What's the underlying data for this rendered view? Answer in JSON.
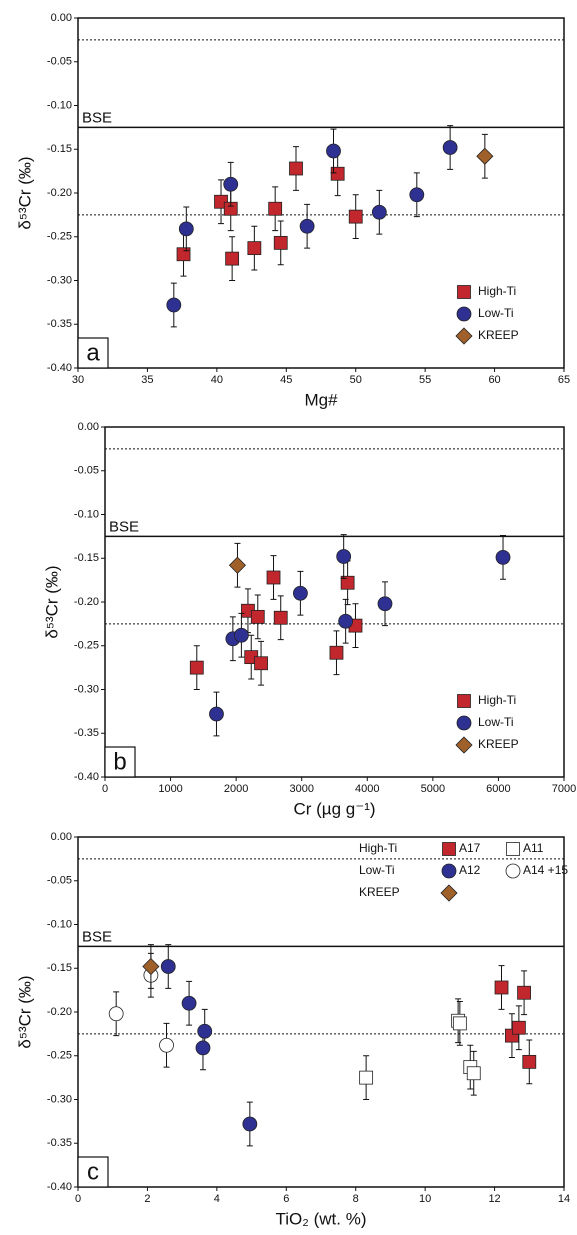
{
  "chart_data": [
    {
      "type": "scatter",
      "xlabel": "Mg#",
      "ylabel": "δ⁵³Cr (‰)",
      "panel_label": "a",
      "legend": "bottom-right",
      "xlim": [
        30,
        65
      ],
      "xticks": [
        30,
        35,
        40,
        45,
        50,
        55,
        60,
        65
      ],
      "ylim": [
        -0.4,
        0.0
      ],
      "yticks": [
        {
          "value": -0.4,
          "label": "-0.40"
        },
        {
          "value": -0.35,
          "label": "-0.35"
        },
        {
          "value": -0.3,
          "label": "-0.30"
        },
        {
          "value": -0.25,
          "label": "-0.25"
        },
        {
          "value": -0.2,
          "label": "-0.20"
        },
        {
          "value": -0.15,
          "label": "-0.15"
        },
        {
          "value": -0.1,
          "label": "-0.10"
        },
        {
          "value": -0.05,
          "label": "-0.05"
        },
        {
          "value": 0.0,
          "label": "0.00"
        }
      ],
      "hlines": [
        {
          "value": -0.025,
          "style": "dotted"
        },
        {
          "value": -0.125,
          "style": "solid",
          "label": "BSE"
        },
        {
          "value": -0.225,
          "style": "dotted"
        }
      ],
      "series": [
        {
          "name": "High-Ti",
          "marker": "square",
          "color": "#c1272d",
          "error": 0.025,
          "x": [
            37.6,
            40.3,
            41.0,
            41.1,
            42.7,
            44.2,
            44.6,
            45.7,
            48.7,
            50.0
          ],
          "values": [
            -0.27,
            -0.21,
            -0.218,
            -0.275,
            -0.263,
            -0.218,
            -0.257,
            -0.172,
            -0.178,
            -0.227
          ]
        },
        {
          "name": "Low-Ti",
          "marker": "circle",
          "color": "#2e3192",
          "error": 0.025,
          "x": [
            36.9,
            37.8,
            41.0,
            46.5,
            48.4,
            51.7,
            54.4,
            56.8
          ],
          "values": [
            -0.328,
            -0.241,
            -0.19,
            -0.238,
            -0.152,
            -0.222,
            -0.202,
            -0.148
          ]
        },
        {
          "name": "KREEP",
          "marker": "diamond",
          "color": "#a0602a",
          "error": 0.025,
          "x": [
            59.3
          ],
          "values": [
            -0.158
          ]
        }
      ]
    },
    {
      "type": "scatter",
      "xlabel": "Cr (µg g⁻¹)",
      "ylabel": "δ⁵³Cr (‰)",
      "panel_label": "b",
      "legend": "bottom-right",
      "xlim": [
        0,
        7000
      ],
      "xticks": [
        0,
        1000,
        2000,
        3000,
        4000,
        5000,
        6000,
        7000
      ],
      "ylim": [
        -0.4,
        0.0
      ],
      "yticks": [
        {
          "value": -0.4,
          "label": "-0.40"
        },
        {
          "value": -0.35,
          "label": "-0.35"
        },
        {
          "value": -0.3,
          "label": "-0.30"
        },
        {
          "value": -0.25,
          "label": "-0.25"
        },
        {
          "value": -0.2,
          "label": "-0.20"
        },
        {
          "value": -0.15,
          "label": "-0.15"
        },
        {
          "value": -0.1,
          "label": "-0.10"
        },
        {
          "value": -0.05,
          "label": "-0.05"
        },
        {
          "value": 0.0,
          "label": "0.00"
        }
      ],
      "hlines": [
        {
          "value": -0.025,
          "style": "dotted"
        },
        {
          "value": -0.125,
          "style": "solid",
          "label": "BSE"
        },
        {
          "value": -0.225,
          "style": "dotted"
        }
      ],
      "series": [
        {
          "name": "High-Ti",
          "marker": "square",
          "color": "#c1272d",
          "error": 0.025,
          "x": [
            1400,
            2180,
            2230,
            2330,
            2380,
            2570,
            2680,
            3530,
            3700,
            3820
          ],
          "values": [
            -0.275,
            -0.21,
            -0.263,
            -0.217,
            -0.27,
            -0.172,
            -0.218,
            -0.258,
            -0.178,
            -0.227
          ]
        },
        {
          "name": "Low-Ti",
          "marker": "circle",
          "color": "#2e3192",
          "error": 0.025,
          "x": [
            1700,
            1950,
            2080,
            2980,
            3640,
            3670,
            4270,
            6070
          ],
          "values": [
            -0.328,
            -0.242,
            -0.238,
            -0.19,
            -0.148,
            -0.222,
            -0.202,
            -0.149
          ]
        },
        {
          "name": "KREEP",
          "marker": "diamond",
          "color": "#a0602a",
          "error": 0.025,
          "x": [
            2020
          ],
          "values": [
            -0.158
          ]
        }
      ]
    },
    {
      "type": "scatter",
      "xlabel": "TiO₂ (wt. %)",
      "ylabel": "δ⁵³Cr (‰)",
      "panel_label": "c",
      "legend": "top-right",
      "xlim": [
        0,
        14
      ],
      "xticks": [
        0,
        2,
        4,
        6,
        8,
        10,
        12,
        14
      ],
      "ylim": [
        -0.4,
        0.0
      ],
      "yticks": [
        {
          "value": -0.4,
          "label": "-0.40"
        },
        {
          "value": -0.35,
          "label": "-0.35"
        },
        {
          "value": -0.3,
          "label": "-0.30"
        },
        {
          "value": -0.25,
          "label": "-0.25"
        },
        {
          "value": -0.2,
          "label": "-0.20"
        },
        {
          "value": -0.15,
          "label": "-0.15"
        },
        {
          "value": -0.1,
          "label": "-0.10"
        },
        {
          "value": -0.05,
          "label": "-0.05"
        },
        {
          "value": 0.0,
          "label": "0.00"
        }
      ],
      "hlines": [
        {
          "value": -0.025,
          "style": "dotted"
        },
        {
          "value": -0.125,
          "style": "solid",
          "label": "BSE"
        },
        {
          "value": -0.225,
          "style": "dotted"
        }
      ],
      "series": [
        {
          "name": "A17",
          "group": "High-Ti",
          "marker": "square",
          "color": "#c1272d",
          "error": 0.025,
          "x": [
            12.2,
            12.5,
            12.7,
            12.85,
            13.0
          ],
          "values": [
            -0.172,
            -0.227,
            -0.218,
            -0.178,
            -0.257
          ]
        },
        {
          "name": "A11",
          "group": "High-Ti",
          "marker": "square",
          "color": "#ffffff",
          "error": 0.025,
          "x": [
            8.3,
            10.95,
            11.0,
            11.3,
            11.4
          ],
          "values": [
            -0.275,
            -0.21,
            -0.213,
            -0.263,
            -0.27
          ]
        },
        {
          "name": "A12",
          "group": "Low-Ti",
          "marker": "circle",
          "color": "#2e3192",
          "error": 0.025,
          "x": [
            2.6,
            3.2,
            3.6,
            3.65,
            4.95
          ],
          "values": [
            -0.148,
            -0.19,
            -0.241,
            -0.222,
            -0.328
          ]
        },
        {
          "name": "A14 +15",
          "group": "Low-Ti",
          "marker": "circle",
          "color": "#ffffff",
          "error": 0.025,
          "x": [
            1.1,
            2.1,
            2.55
          ],
          "values": [
            -0.202,
            -0.158,
            -0.238
          ]
        },
        {
          "name": "KREEP",
          "marker": "diamond",
          "color": "#a0602a",
          "error": 0.025,
          "x": [
            2.1
          ],
          "values": [
            -0.148
          ]
        }
      ]
    }
  ]
}
